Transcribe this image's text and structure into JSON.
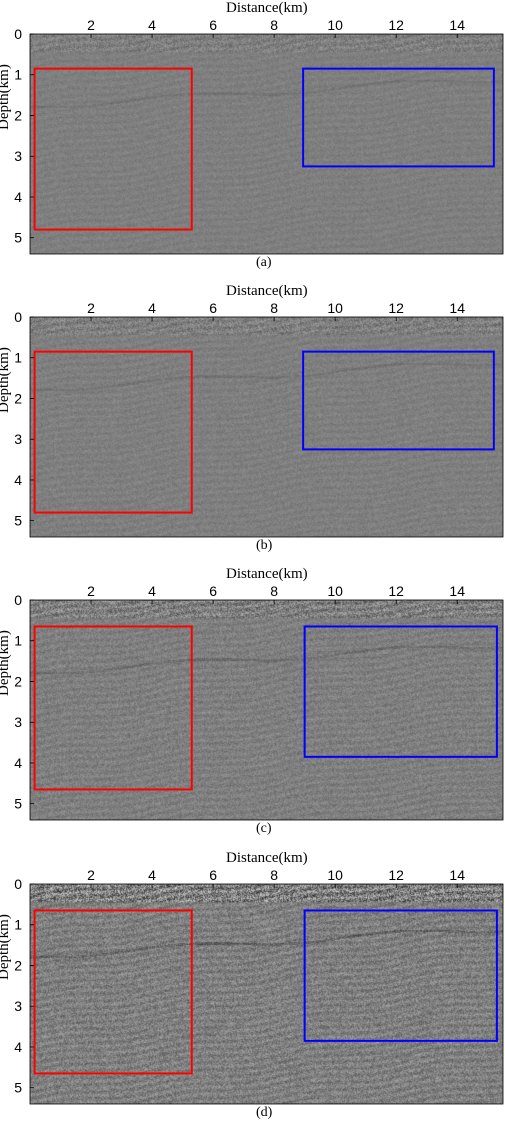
{
  "panels": [
    {
      "id": "a",
      "caption": "(a)",
      "xlabel": "Distance(km)",
      "ylabel": "Depth(km)",
      "x_ticks": [
        2,
        4,
        6,
        8,
        10,
        12,
        14
      ],
      "y_ticks": [
        0,
        1,
        2,
        3,
        4,
        5
      ],
      "x_range": [
        0,
        15.5
      ],
      "y_range": [
        0,
        5.4
      ],
      "red_box": {
        "x": [
          0.15,
          5.3
        ],
        "y": [
          0.85,
          4.8
        ]
      },
      "blue_box": {
        "x": [
          8.95,
          15.2
        ],
        "y": [
          0.85,
          3.25
        ]
      },
      "noise_contrast": 0.35
    },
    {
      "id": "b",
      "caption": "(b)",
      "xlabel": "Distance(km)",
      "ylabel": "Depth(km)",
      "x_ticks": [
        2,
        4,
        6,
        8,
        10,
        12,
        14
      ],
      "y_ticks": [
        0,
        1,
        2,
        3,
        4,
        5
      ],
      "x_range": [
        0,
        15.5
      ],
      "y_range": [
        0,
        5.4
      ],
      "red_box": {
        "x": [
          0.15,
          5.3
        ],
        "y": [
          0.85,
          4.8
        ]
      },
      "blue_box": {
        "x": [
          8.95,
          15.2
        ],
        "y": [
          0.85,
          3.25
        ]
      },
      "noise_contrast": 0.4
    },
    {
      "id": "c",
      "caption": "(c)",
      "xlabel": "Distance(km)",
      "ylabel": "Depth(km)",
      "x_ticks": [
        2,
        4,
        6,
        8,
        10,
        12,
        14
      ],
      "y_ticks": [
        0,
        1,
        2,
        3,
        4,
        5
      ],
      "x_range": [
        0,
        15.5
      ],
      "y_range": [
        0,
        5.4
      ],
      "red_box": {
        "x": [
          0.15,
          5.3
        ],
        "y": [
          0.65,
          4.65
        ]
      },
      "blue_box": {
        "x": [
          9.0,
          15.3
        ],
        "y": [
          0.65,
          3.85
        ]
      },
      "noise_contrast": 0.6
    },
    {
      "id": "d",
      "caption": "(d)",
      "xlabel": "Distance(km)",
      "ylabel": "Depth(km)",
      "x_ticks": [
        2,
        4,
        6,
        8,
        10,
        12,
        14
      ],
      "y_ticks": [
        0,
        1,
        2,
        3,
        4,
        5
      ],
      "x_range": [
        0,
        15.5
      ],
      "y_range": [
        0,
        5.4
      ],
      "red_box": {
        "x": [
          0.15,
          5.3
        ],
        "y": [
          0.65,
          4.65
        ]
      },
      "blue_box": {
        "x": [
          9.0,
          15.3
        ],
        "y": [
          0.65,
          3.85
        ]
      },
      "noise_contrast": 0.95
    }
  ],
  "colors": {
    "background": "#7f7f7f",
    "red_box": "#ff0000",
    "blue_box": "#0000ff"
  }
}
